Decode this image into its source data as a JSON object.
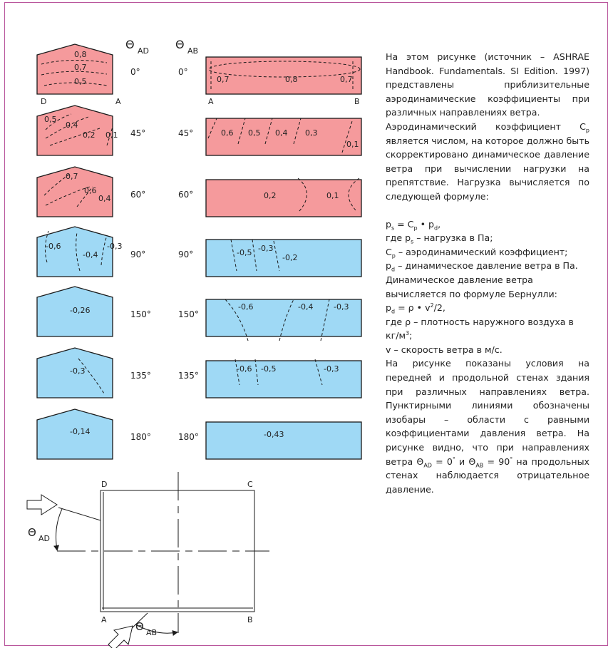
{
  "colors": {
    "positive": "#f59a9c",
    "negative": "#9fd9f5",
    "stroke": "#1a1a1a",
    "frame": "#b9569c"
  },
  "headers": {
    "theta": "Θ",
    "ad": "AD",
    "ab": "AB"
  },
  "rows": [
    {
      "angle": "0°",
      "fill": "positive",
      "gable_labels": [
        "0,8",
        "0,7",
        "0,5"
      ],
      "wall_labels": [
        "0,7",
        "0,8",
        "0,7"
      ]
    },
    {
      "angle": "45°",
      "fill": "positive",
      "gable_labels": [
        "0,5",
        "0,4",
        "0,2",
        "0,1"
      ],
      "wall_labels": [
        "0,6",
        "0,5",
        "0,4",
        "0,3",
        "0,1"
      ]
    },
    {
      "angle": "60°",
      "fill": "positive",
      "gable_labels": [
        "0,7",
        "0,6",
        "0,4"
      ],
      "wall_labels": [
        "0,2",
        "0,1"
      ]
    },
    {
      "angle": "90°",
      "fill": "negative",
      "gable_labels": [
        "-0,6",
        "-0,4",
        "-0,3"
      ],
      "wall_labels": [
        "-0,5",
        "-0,3",
        "-0,2"
      ]
    },
    {
      "angle": "150°",
      "fill": "negative",
      "gable_labels": [
        "-0,26"
      ],
      "wall_labels": [
        "-0,6",
        "-0,4",
        "-0,3"
      ]
    },
    {
      "angle": "135°",
      "fill": "negative",
      "gable_labels": [
        "-0,3"
      ],
      "wall_labels": [
        "-0,6",
        "-0,5",
        "-0,3"
      ]
    },
    {
      "angle": "180°",
      "fill": "negative",
      "gable_labels": [
        "-0,14"
      ],
      "wall_labels": [
        "-0,43"
      ]
    }
  ],
  "corners": {
    "top_left": "D",
    "top_right": "C",
    "bottom_left": "A",
    "bottom_right": "B",
    "row0_gable_left": "D",
    "row0_gable_right": "A",
    "row0_wall_left": "A",
    "row0_wall_right": "B"
  },
  "text": {
    "p1": "На этом рисунке (источник – ASHRAE Handbook. Fundamentals. SI Edition. 1997) представлены приблизительные аэродинамические коэффициенты при различных направлениях ветра.",
    "p2a": "Аэродинамический коэффициент C",
    "p2sub": "p",
    "p2b": " является числом, на которое должно быть скорректировано динамическое давление ветра при вычислении нагрузки на препятствие. Нагрузка вычисляется по следующей формуле:",
    "f1a": "p",
    "f1sub1": "s",
    "f1b": " = C",
    "f1sub2": "p",
    "f1c": " • p",
    "f1sub3": "d",
    "f1d": ",",
    "w1a": "где p",
    "w1sub": "s",
    "w1b": " – нагрузка в Па;",
    "w2a": "C",
    "w2sub": "p",
    "w2b": " – аэродинамический коэффициент;",
    "w3a": "p",
    "w3sub": "d",
    "w3b": " – динамическое давление ветра в Па.",
    "b1": "Динамическое давление ветра вычисляется по формуле Бернулли:",
    "f2a": "p",
    "f2sub": "d",
    "f2b": " = ρ • v",
    "f2sup": "2",
    "f2c": "/2,",
    "w4a": "где ρ – плотность наружного воздуха в кг/м",
    "w4sup": "3",
    "w4b": ";",
    "w5": "v – скорость ветра в м/с.",
    "p3": "На рисунке показаны условия на передней и продольной стенах здания при различных направлениях ветра. Пунктирными линиями обозначены изобары – области с равными коэффициентами давления ветра. На рисунке видно, что при направлениях ветра",
    "p3c1": " Θ",
    "p3sub1": "AD",
    "p3c2": " = 0",
    "p3sup1": "°",
    "p3c3": " и Θ",
    "p3sub2": "AB",
    "p3c4": " = 90",
    "p3sup2": "°",
    "p3end": " на продольных стенах наблюдается отрицательное давление."
  }
}
